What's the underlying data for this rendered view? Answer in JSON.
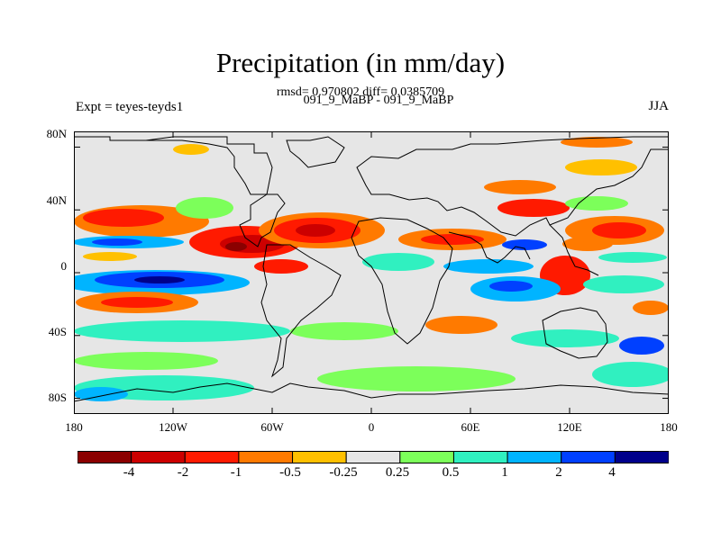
{
  "title": "Precipitation (in mm/day)",
  "stats_line": "rmsd= 0.970802 diff= 0.0385709",
  "experiments_line": "091_9_MaBP - 091_9_MaBP",
  "expt_label": "Expt = teyes-teyds1",
  "season": "JJA",
  "axes": {
    "y_ticks": [
      "80N",
      "40N",
      "0",
      "40S",
      "80S"
    ],
    "x_ticks": [
      "180",
      "120W",
      "60W",
      "0",
      "60E",
      "120E",
      "180"
    ]
  },
  "colorbar": {
    "labels": [
      "-4",
      "-2",
      "-1",
      "-0.5",
      "-0.25",
      "0.25",
      "0.5",
      "1",
      "2",
      "4"
    ],
    "colors": [
      "#8b0000",
      "#cc0000",
      "#ff1a00",
      "#ff7a00",
      "#ffc000",
      "#e6e6e6",
      "#7cff5a",
      "#30f0c0",
      "#00b4ff",
      "#0040ff",
      "#00008b"
    ]
  }
}
